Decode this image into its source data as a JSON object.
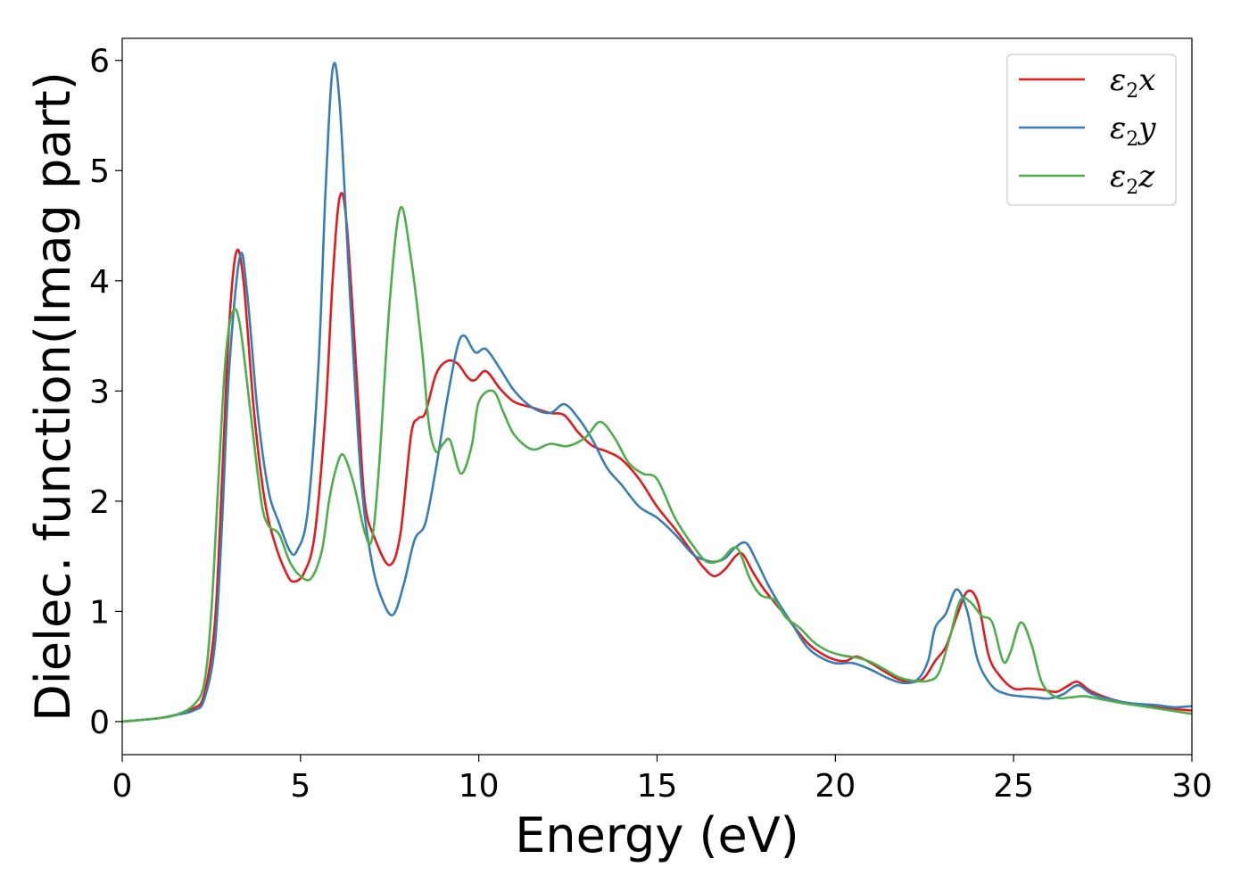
{
  "chart_data": {
    "type": "line",
    "xlabel": "Energy (eV)",
    "ylabel": "Dielec. function(Imag part)",
    "xlim": [
      0,
      30
    ],
    "ylim": [
      -0.3,
      6.2
    ],
    "xticks": [
      0,
      5,
      10,
      15,
      20,
      25,
      30
    ],
    "yticks": [
      0,
      1,
      2,
      3,
      4,
      5,
      6
    ],
    "grid": false,
    "legend": "top-right",
    "series": [
      {
        "name": "ε2x",
        "legend": {
          "base": "ε",
          "sub": "2",
          "var": "x"
        },
        "color": "#e41a1c",
        "points": [
          [
            0,
            0
          ],
          [
            1,
            0.03
          ],
          [
            1.5,
            0.06
          ],
          [
            2,
            0.12
          ],
          [
            2.3,
            0.25
          ],
          [
            2.6,
            0.9
          ],
          [
            2.8,
            2.2
          ],
          [
            3.0,
            3.6
          ],
          [
            3.2,
            4.26
          ],
          [
            3.4,
            4.0
          ],
          [
            3.7,
            2.8
          ],
          [
            4.0,
            2.0
          ],
          [
            4.3,
            1.6
          ],
          [
            4.6,
            1.35
          ],
          [
            4.8,
            1.27
          ],
          [
            5.1,
            1.35
          ],
          [
            5.4,
            1.7
          ],
          [
            5.7,
            2.8
          ],
          [
            5.9,
            4.0
          ],
          [
            6.1,
            4.76
          ],
          [
            6.3,
            4.5
          ],
          [
            6.6,
            3.0
          ],
          [
            6.8,
            2.0
          ],
          [
            7.1,
            1.65
          ],
          [
            7.5,
            1.42
          ],
          [
            7.8,
            1.7
          ],
          [
            8.1,
            2.6
          ],
          [
            8.3,
            2.75
          ],
          [
            8.5,
            2.8
          ],
          [
            8.8,
            3.15
          ],
          [
            9.1,
            3.27
          ],
          [
            9.4,
            3.25
          ],
          [
            9.7,
            3.12
          ],
          [
            9.9,
            3.1
          ],
          [
            10.2,
            3.18
          ],
          [
            10.6,
            3.02
          ],
          [
            11.0,
            2.9
          ],
          [
            11.5,
            2.85
          ],
          [
            12.0,
            2.8
          ],
          [
            12.4,
            2.78
          ],
          [
            12.8,
            2.62
          ],
          [
            13.2,
            2.5
          ],
          [
            13.6,
            2.45
          ],
          [
            14.0,
            2.38
          ],
          [
            14.5,
            2.2
          ],
          [
            15.0,
            1.95
          ],
          [
            15.5,
            1.75
          ],
          [
            16.0,
            1.53
          ],
          [
            16.3,
            1.4
          ],
          [
            16.6,
            1.32
          ],
          [
            16.9,
            1.38
          ],
          [
            17.2,
            1.5
          ],
          [
            17.4,
            1.52
          ],
          [
            17.7,
            1.35
          ],
          [
            18.0,
            1.2
          ],
          [
            18.3,
            1.08
          ],
          [
            18.7,
            0.92
          ],
          [
            19.2,
            0.72
          ],
          [
            19.6,
            0.62
          ],
          [
            20.0,
            0.56
          ],
          [
            20.3,
            0.55
          ],
          [
            20.6,
            0.59
          ],
          [
            21.0,
            0.53
          ],
          [
            21.4,
            0.45
          ],
          [
            21.8,
            0.38
          ],
          [
            22.2,
            0.36
          ],
          [
            22.5,
            0.4
          ],
          [
            22.8,
            0.55
          ],
          [
            23.1,
            0.68
          ],
          [
            23.4,
            0.95
          ],
          [
            23.7,
            1.18
          ],
          [
            24.0,
            1.08
          ],
          [
            24.3,
            0.6
          ],
          [
            24.6,
            0.42
          ],
          [
            25.0,
            0.3
          ],
          [
            25.4,
            0.3
          ],
          [
            25.8,
            0.29
          ],
          [
            26.2,
            0.27
          ],
          [
            26.5,
            0.32
          ],
          [
            26.8,
            0.36
          ],
          [
            27.2,
            0.27
          ],
          [
            28.0,
            0.18
          ],
          [
            29.0,
            0.13
          ],
          [
            30.0,
            0.1
          ]
        ]
      },
      {
        "name": "ε2y",
        "legend": {
          "base": "ε",
          "sub": "2",
          "var": "y"
        },
        "color": "#377eb8",
        "points": [
          [
            0,
            0
          ],
          [
            1,
            0.03
          ],
          [
            1.5,
            0.06
          ],
          [
            2,
            0.1
          ],
          [
            2.3,
            0.2
          ],
          [
            2.6,
            0.7
          ],
          [
            2.8,
            1.8
          ],
          [
            3.0,
            3.2
          ],
          [
            3.3,
            4.22
          ],
          [
            3.5,
            3.9
          ],
          [
            3.8,
            2.8
          ],
          [
            4.1,
            2.1
          ],
          [
            4.4,
            1.8
          ],
          [
            4.7,
            1.55
          ],
          [
            4.9,
            1.55
          ],
          [
            5.2,
            1.9
          ],
          [
            5.5,
            3.2
          ],
          [
            5.7,
            4.8
          ],
          [
            5.9,
            5.92
          ],
          [
            6.1,
            5.6
          ],
          [
            6.4,
            3.8
          ],
          [
            6.7,
            2.2
          ],
          [
            7.0,
            1.45
          ],
          [
            7.3,
            1.1
          ],
          [
            7.6,
            0.97
          ],
          [
            7.9,
            1.25
          ],
          [
            8.2,
            1.65
          ],
          [
            8.5,
            1.8
          ],
          [
            8.8,
            2.3
          ],
          [
            9.1,
            2.9
          ],
          [
            9.4,
            3.4
          ],
          [
            9.6,
            3.5
          ],
          [
            9.9,
            3.35
          ],
          [
            10.2,
            3.38
          ],
          [
            10.6,
            3.2
          ],
          [
            11.0,
            3.0
          ],
          [
            11.5,
            2.85
          ],
          [
            12.0,
            2.8
          ],
          [
            12.4,
            2.88
          ],
          [
            12.8,
            2.75
          ],
          [
            13.2,
            2.55
          ],
          [
            13.6,
            2.3
          ],
          [
            14.0,
            2.15
          ],
          [
            14.5,
            1.95
          ],
          [
            15.0,
            1.85
          ],
          [
            15.5,
            1.7
          ],
          [
            16.0,
            1.52
          ],
          [
            16.3,
            1.47
          ],
          [
            16.6,
            1.45
          ],
          [
            16.9,
            1.48
          ],
          [
            17.2,
            1.58
          ],
          [
            17.5,
            1.62
          ],
          [
            17.8,
            1.45
          ],
          [
            18.1,
            1.25
          ],
          [
            18.4,
            1.08
          ],
          [
            18.8,
            0.88
          ],
          [
            19.2,
            0.68
          ],
          [
            19.6,
            0.58
          ],
          [
            20.0,
            0.53
          ],
          [
            20.5,
            0.53
          ],
          [
            21.0,
            0.47
          ],
          [
            21.5,
            0.39
          ],
          [
            21.9,
            0.35
          ],
          [
            22.3,
            0.38
          ],
          [
            22.6,
            0.55
          ],
          [
            22.8,
            0.85
          ],
          [
            23.1,
            0.98
          ],
          [
            23.4,
            1.2
          ],
          [
            23.7,
            1.0
          ],
          [
            24.0,
            0.55
          ],
          [
            24.4,
            0.32
          ],
          [
            24.8,
            0.25
          ],
          [
            25.2,
            0.23
          ],
          [
            25.6,
            0.22
          ],
          [
            26.0,
            0.21
          ],
          [
            26.4,
            0.25
          ],
          [
            26.8,
            0.33
          ],
          [
            27.2,
            0.25
          ],
          [
            28.0,
            0.18
          ],
          [
            28.5,
            0.16
          ],
          [
            29.0,
            0.15
          ],
          [
            29.5,
            0.13
          ],
          [
            30.0,
            0.14
          ]
        ]
      },
      {
        "name": "ε2z",
        "legend": {
          "base": "ε",
          "sub": "2",
          "var": "z"
        },
        "color": "#4daf4a",
        "points": [
          [
            0,
            0
          ],
          [
            1,
            0.03
          ],
          [
            1.5,
            0.06
          ],
          [
            2,
            0.15
          ],
          [
            2.3,
            0.35
          ],
          [
            2.5,
            1.0
          ],
          [
            2.7,
            2.2
          ],
          [
            2.9,
            3.3
          ],
          [
            3.1,
            3.72
          ],
          [
            3.3,
            3.6
          ],
          [
            3.6,
            2.8
          ],
          [
            3.9,
            2.0
          ],
          [
            4.1,
            1.78
          ],
          [
            4.4,
            1.7
          ],
          [
            4.7,
            1.45
          ],
          [
            5.0,
            1.32
          ],
          [
            5.3,
            1.3
          ],
          [
            5.6,
            1.55
          ],
          [
            5.8,
            2.0
          ],
          [
            6.0,
            2.3
          ],
          [
            6.2,
            2.42
          ],
          [
            6.5,
            2.15
          ],
          [
            6.8,
            1.72
          ],
          [
            7.0,
            1.65
          ],
          [
            7.2,
            2.3
          ],
          [
            7.5,
            3.8
          ],
          [
            7.8,
            4.66
          ],
          [
            8.1,
            4.2
          ],
          [
            8.4,
            3.4
          ],
          [
            8.6,
            2.7
          ],
          [
            8.8,
            2.45
          ],
          [
            9.0,
            2.52
          ],
          [
            9.2,
            2.55
          ],
          [
            9.5,
            2.25
          ],
          [
            9.8,
            2.5
          ],
          [
            10.0,
            2.9
          ],
          [
            10.4,
            3.0
          ],
          [
            10.7,
            2.8
          ],
          [
            11.0,
            2.6
          ],
          [
            11.5,
            2.47
          ],
          [
            12.0,
            2.52
          ],
          [
            12.5,
            2.5
          ],
          [
            13.0,
            2.58
          ],
          [
            13.4,
            2.72
          ],
          [
            13.8,
            2.58
          ],
          [
            14.2,
            2.35
          ],
          [
            14.6,
            2.25
          ],
          [
            15.0,
            2.2
          ],
          [
            15.5,
            1.85
          ],
          [
            16.0,
            1.6
          ],
          [
            16.4,
            1.45
          ],
          [
            16.8,
            1.47
          ],
          [
            17.1,
            1.57
          ],
          [
            17.3,
            1.55
          ],
          [
            17.6,
            1.3
          ],
          [
            17.9,
            1.15
          ],
          [
            18.3,
            1.1
          ],
          [
            18.6,
            0.95
          ],
          [
            19.0,
            0.85
          ],
          [
            19.4,
            0.72
          ],
          [
            19.8,
            0.64
          ],
          [
            20.2,
            0.6
          ],
          [
            20.6,
            0.58
          ],
          [
            21.0,
            0.54
          ],
          [
            21.4,
            0.47
          ],
          [
            21.8,
            0.4
          ],
          [
            22.2,
            0.37
          ],
          [
            22.6,
            0.37
          ],
          [
            22.9,
            0.44
          ],
          [
            23.2,
            0.75
          ],
          [
            23.5,
            1.1
          ],
          [
            23.8,
            1.08
          ],
          [
            24.1,
            0.96
          ],
          [
            24.4,
            0.9
          ],
          [
            24.7,
            0.55
          ],
          [
            24.9,
            0.62
          ],
          [
            25.2,
            0.9
          ],
          [
            25.5,
            0.7
          ],
          [
            25.8,
            0.35
          ],
          [
            26.2,
            0.22
          ],
          [
            26.6,
            0.22
          ],
          [
            27.0,
            0.23
          ],
          [
            27.5,
            0.2
          ],
          [
            28.0,
            0.17
          ],
          [
            29.0,
            0.12
          ],
          [
            30.0,
            0.07
          ]
        ]
      }
    ]
  }
}
